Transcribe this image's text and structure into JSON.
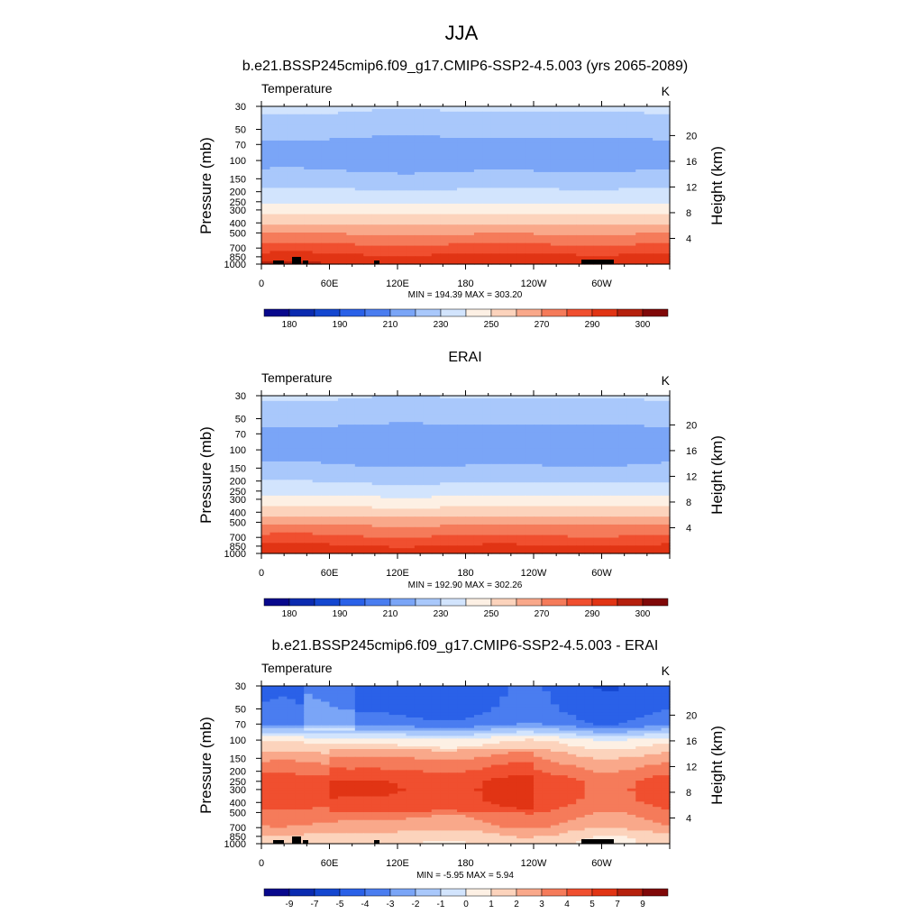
{
  "figure": {
    "title": "JJA"
  },
  "colors": {
    "palette": [
      "#08088c",
      "#0b2bb0",
      "#1447d0",
      "#2a61e8",
      "#4a7df0",
      "#7aa5f7",
      "#a9c8fb",
      "#d2e4fd",
      "#fdf0e4",
      "#fcd3bc",
      "#f9a88a",
      "#f57b5a",
      "#f04f2f",
      "#e13414",
      "#b5200d",
      "#800808"
    ]
  },
  "chart_data": [
    {
      "type": "heatmap",
      "panel": "model",
      "title": "b.e21.BSSP245cmip6.f09_g17.CMIP6-SSP2-4.5.003 (yrs 2065-2089)",
      "variable_label": "Temperature",
      "units": "K",
      "ylabel": "Pressure (mb)",
      "ylabel_right": "Height (km)",
      "x_ticks": [
        "0",
        "60E",
        "120E",
        "180",
        "120W",
        "60W"
      ],
      "y_ticks": [
        "30",
        "50",
        "70",
        "100",
        "150",
        "200",
        "250",
        "300",
        "400",
        "500",
        "700",
        "850",
        "1000"
      ],
      "y_ticks_right": [
        "20",
        "16",
        "12",
        "8",
        "4"
      ],
      "min_max_text": "MIN = 194.39  MAX = 303.20",
      "stats": {
        "min": 194.39,
        "max": 303.2
      },
      "colorbar_labels": [
        "180",
        "190",
        "210",
        "230",
        "250",
        "270",
        "290",
        "300"
      ],
      "colorbar_levels": [
        175,
        180,
        185,
        190,
        200,
        210,
        220,
        230,
        240,
        250,
        260,
        270,
        280,
        290,
        295,
        300
      ],
      "profile_levels": [
        30,
        50,
        70,
        100,
        150,
        200,
        250,
        300,
        400,
        500,
        700,
        850,
        1000
      ],
      "profile_values": [
        222,
        214,
        207,
        206,
        213,
        222,
        228,
        236,
        248,
        259,
        274,
        283,
        290
      ],
      "topography": true
    },
    {
      "type": "heatmap",
      "panel": "obs",
      "title": "ERAI",
      "variable_label": "Temperature",
      "units": "K",
      "ylabel": "Pressure (mb)",
      "ylabel_right": "Height (km)",
      "x_ticks": [
        "0",
        "60E",
        "120E",
        "180",
        "120W",
        "60W"
      ],
      "y_ticks": [
        "30",
        "50",
        "70",
        "100",
        "150",
        "200",
        "250",
        "300",
        "400",
        "500",
        "700",
        "850",
        "1000"
      ],
      "y_ticks_right": [
        "20",
        "16",
        "12",
        "8",
        "4"
      ],
      "min_max_text": "MIN = 192.90  MAX = 302.26",
      "stats": {
        "min": 192.9,
        "max": 302.26
      },
      "colorbar_labels": [
        "180",
        "190",
        "210",
        "230",
        "250",
        "270",
        "290",
        "300"
      ],
      "colorbar_levels": [
        175,
        180,
        185,
        190,
        200,
        210,
        220,
        230,
        240,
        250,
        260,
        270,
        280,
        290,
        295,
        300
      ],
      "profile_levels": [
        30,
        50,
        70,
        100,
        150,
        200,
        250,
        300,
        400,
        500,
        700,
        850,
        1000
      ],
      "profile_values": [
        221,
        213,
        206,
        205,
        211,
        219,
        225,
        233,
        245,
        257,
        272,
        281,
        288
      ],
      "topography": false
    },
    {
      "type": "heatmap",
      "panel": "diff",
      "title": "b.e21.BSSP245cmip6.f09_g17.CMIP6-SSP2-4.5.003 - ERAI",
      "variable_label": "Temperature",
      "units": "K",
      "ylabel": "Pressure (mb)",
      "ylabel_right": "Height (km)",
      "x_ticks": [
        "0",
        "60E",
        "120E",
        "180",
        "120W",
        "60W"
      ],
      "y_ticks": [
        "30",
        "50",
        "70",
        "100",
        "150",
        "200",
        "250",
        "300",
        "400",
        "500",
        "700",
        "850",
        "1000"
      ],
      "y_ticks_right": [
        "20",
        "16",
        "12",
        "8",
        "4"
      ],
      "min_max_text": "MIN = -5.95  MAX =   5.94",
      "stats": {
        "min": -5.95,
        "max": 5.94
      },
      "colorbar_labels": [
        "-9",
        "-7",
        "-5",
        "-4",
        "-3",
        "-2",
        "-1",
        "0",
        "1",
        "2",
        "3",
        "4",
        "5",
        "7",
        "9"
      ],
      "colorbar_levels": [
        -9,
        -7,
        -5,
        -4,
        -3,
        -2,
        -1,
        0,
        1,
        2,
        3,
        4,
        5,
        7,
        9
      ],
      "profile_levels": [
        30,
        50,
        70,
        100,
        150,
        200,
        250,
        300,
        400,
        500,
        700,
        850,
        1000
      ],
      "profile_values": [
        -4.5,
        -4.2,
        -3.5,
        0.5,
        2.5,
        3.5,
        4.3,
        4.4,
        4.2,
        3.5,
        2.6,
        1.5,
        1.2
      ],
      "topography": true
    }
  ]
}
